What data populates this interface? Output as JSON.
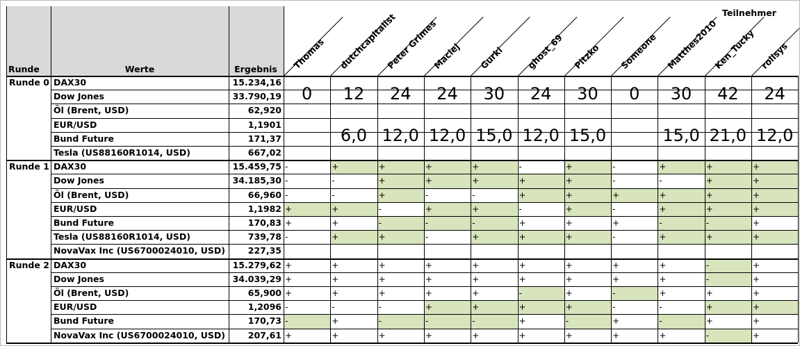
{
  "headers": {
    "runde": "Runde",
    "werte": "Werte",
    "ergebnis": "Ergebnis",
    "teilnehmer": "Teilnehmer"
  },
  "participants": [
    "Thomas",
    "dutchcapitalist",
    "Peter Grimes",
    "Maciej",
    "Gurki",
    "ghost_69",
    "Pitzko",
    "Someone",
    "Matthes2010",
    "Ken_Tucky",
    "rolisys"
  ],
  "scores_total": [
    "0",
    "12",
    "24",
    "24",
    "30",
    "24",
    "30",
    "0",
    "30",
    "42",
    "24"
  ],
  "scores_half": [
    "",
    "6,0",
    "12,0",
    "12,0",
    "15,0",
    "12,0",
    "15,0",
    "",
    "15,0",
    "21,0",
    "12,0"
  ],
  "rounds": [
    {
      "label": "Runde 0",
      "rows": [
        {
          "name": "DAX30",
          "value": "15.234,16"
        },
        {
          "name": "Dow Jones",
          "value": "33.790,19"
        },
        {
          "name": "Öl (Brent, USD)",
          "value": "62,920"
        },
        {
          "name": "EUR/USD",
          "value": "1,1901"
        },
        {
          "name": "Bund Future",
          "value": "171,37"
        },
        {
          "name": "Tesla (US88160R1014, USD)",
          "value": "667,02"
        }
      ]
    },
    {
      "label": "Runde 1",
      "rows": [
        {
          "name": "DAX30",
          "value": "15.459,75",
          "marks": [
            "-",
            "+",
            "+",
            "+",
            "+",
            "-",
            "+",
            "-",
            "+",
            "+",
            "+"
          ],
          "green": [
            0,
            1,
            1,
            1,
            1,
            0,
            1,
            0,
            1,
            1,
            1
          ]
        },
        {
          "name": "Dow Jones",
          "value": "34.185,30",
          "marks": [
            "-",
            "-",
            "+",
            "+",
            "+",
            "+",
            "+",
            "-",
            "-",
            "+",
            "+"
          ],
          "green": [
            0,
            0,
            1,
            1,
            1,
            1,
            1,
            0,
            0,
            1,
            1
          ]
        },
        {
          "name": "Öl (Brent, USD)",
          "value": "66,960",
          "marks": [
            "-",
            "-",
            "+",
            "-",
            "-",
            "+",
            "+",
            "+",
            "+",
            "+",
            "+"
          ],
          "green": [
            0,
            0,
            1,
            0,
            0,
            1,
            1,
            1,
            1,
            1,
            1
          ]
        },
        {
          "name": "EUR/USD",
          "value": "1,1982",
          "marks": [
            "+",
            "+",
            "-",
            "+",
            "+",
            "-",
            "+",
            "-",
            "+",
            "+",
            "+"
          ],
          "green": [
            1,
            1,
            0,
            1,
            1,
            0,
            1,
            0,
            1,
            1,
            1
          ]
        },
        {
          "name": "Bund Future",
          "value": "170,83",
          "marks": [
            "+",
            "+",
            "-",
            "-",
            "-",
            "+",
            "+",
            "+",
            "-",
            "-",
            "+"
          ],
          "green": [
            0,
            0,
            1,
            1,
            1,
            0,
            0,
            0,
            1,
            1,
            0
          ]
        },
        {
          "name": "Tesla (US88160R1014, USD)",
          "value": "739,78",
          "marks": [
            "-",
            "+",
            "+",
            "-",
            "+",
            "+",
            "+",
            "-",
            "+",
            "+",
            "+"
          ],
          "green": [
            0,
            1,
            1,
            0,
            1,
            1,
            1,
            0,
            1,
            1,
            1
          ]
        },
        {
          "name": "NovaVax Inc (US6700024010, USD)",
          "value": "227,35",
          "marks": null,
          "green": null
        }
      ]
    },
    {
      "label": "Runde 2",
      "rows": [
        {
          "name": "DAX30",
          "value": "15.279,62",
          "marks": [
            "+",
            "+",
            "+",
            "+",
            "+",
            "+",
            "+",
            "+",
            "+",
            "-",
            "+"
          ],
          "green": [
            0,
            0,
            0,
            0,
            0,
            0,
            0,
            0,
            0,
            1,
            0
          ]
        },
        {
          "name": "Dow Jones",
          "value": "34.039,29",
          "marks": [
            "+",
            "+",
            "+",
            "+",
            "+",
            "+",
            "+",
            "+",
            "+",
            "-",
            "+"
          ],
          "green": [
            0,
            0,
            0,
            0,
            0,
            0,
            0,
            0,
            0,
            1,
            0
          ]
        },
        {
          "name": "Öl (Brent, USD)",
          "value": "65,900",
          "marks": [
            "+",
            "+",
            "+",
            "+",
            "+",
            "-",
            "+",
            "-",
            "+",
            "+",
            "+"
          ],
          "green": [
            0,
            0,
            0,
            0,
            0,
            1,
            0,
            1,
            0,
            0,
            0
          ]
        },
        {
          "name": "EUR/USD",
          "value": "1,2096",
          "marks": [
            "-",
            "-",
            "-",
            "+",
            "+",
            "+",
            "+",
            "-",
            "-",
            "+",
            "+"
          ],
          "green": [
            0,
            0,
            0,
            1,
            1,
            1,
            1,
            0,
            0,
            1,
            1
          ]
        },
        {
          "name": "Bund Future",
          "value": "170,73",
          "marks": [
            "-",
            "+",
            "-",
            "-",
            "-",
            "+",
            "-",
            "+",
            "-",
            "+",
            "+"
          ],
          "green": [
            1,
            0,
            1,
            1,
            1,
            0,
            1,
            0,
            1,
            0,
            0
          ]
        },
        {
          "name": "NovaVax Inc (US6700024010, USD)",
          "value": "207,61",
          "marks": [
            "+",
            "+",
            "+",
            "+",
            "+",
            "+",
            "+",
            "+",
            "+",
            "-",
            "+"
          ],
          "green": [
            0,
            0,
            0,
            0,
            0,
            0,
            0,
            0,
            0,
            1,
            0
          ]
        }
      ]
    }
  ]
}
